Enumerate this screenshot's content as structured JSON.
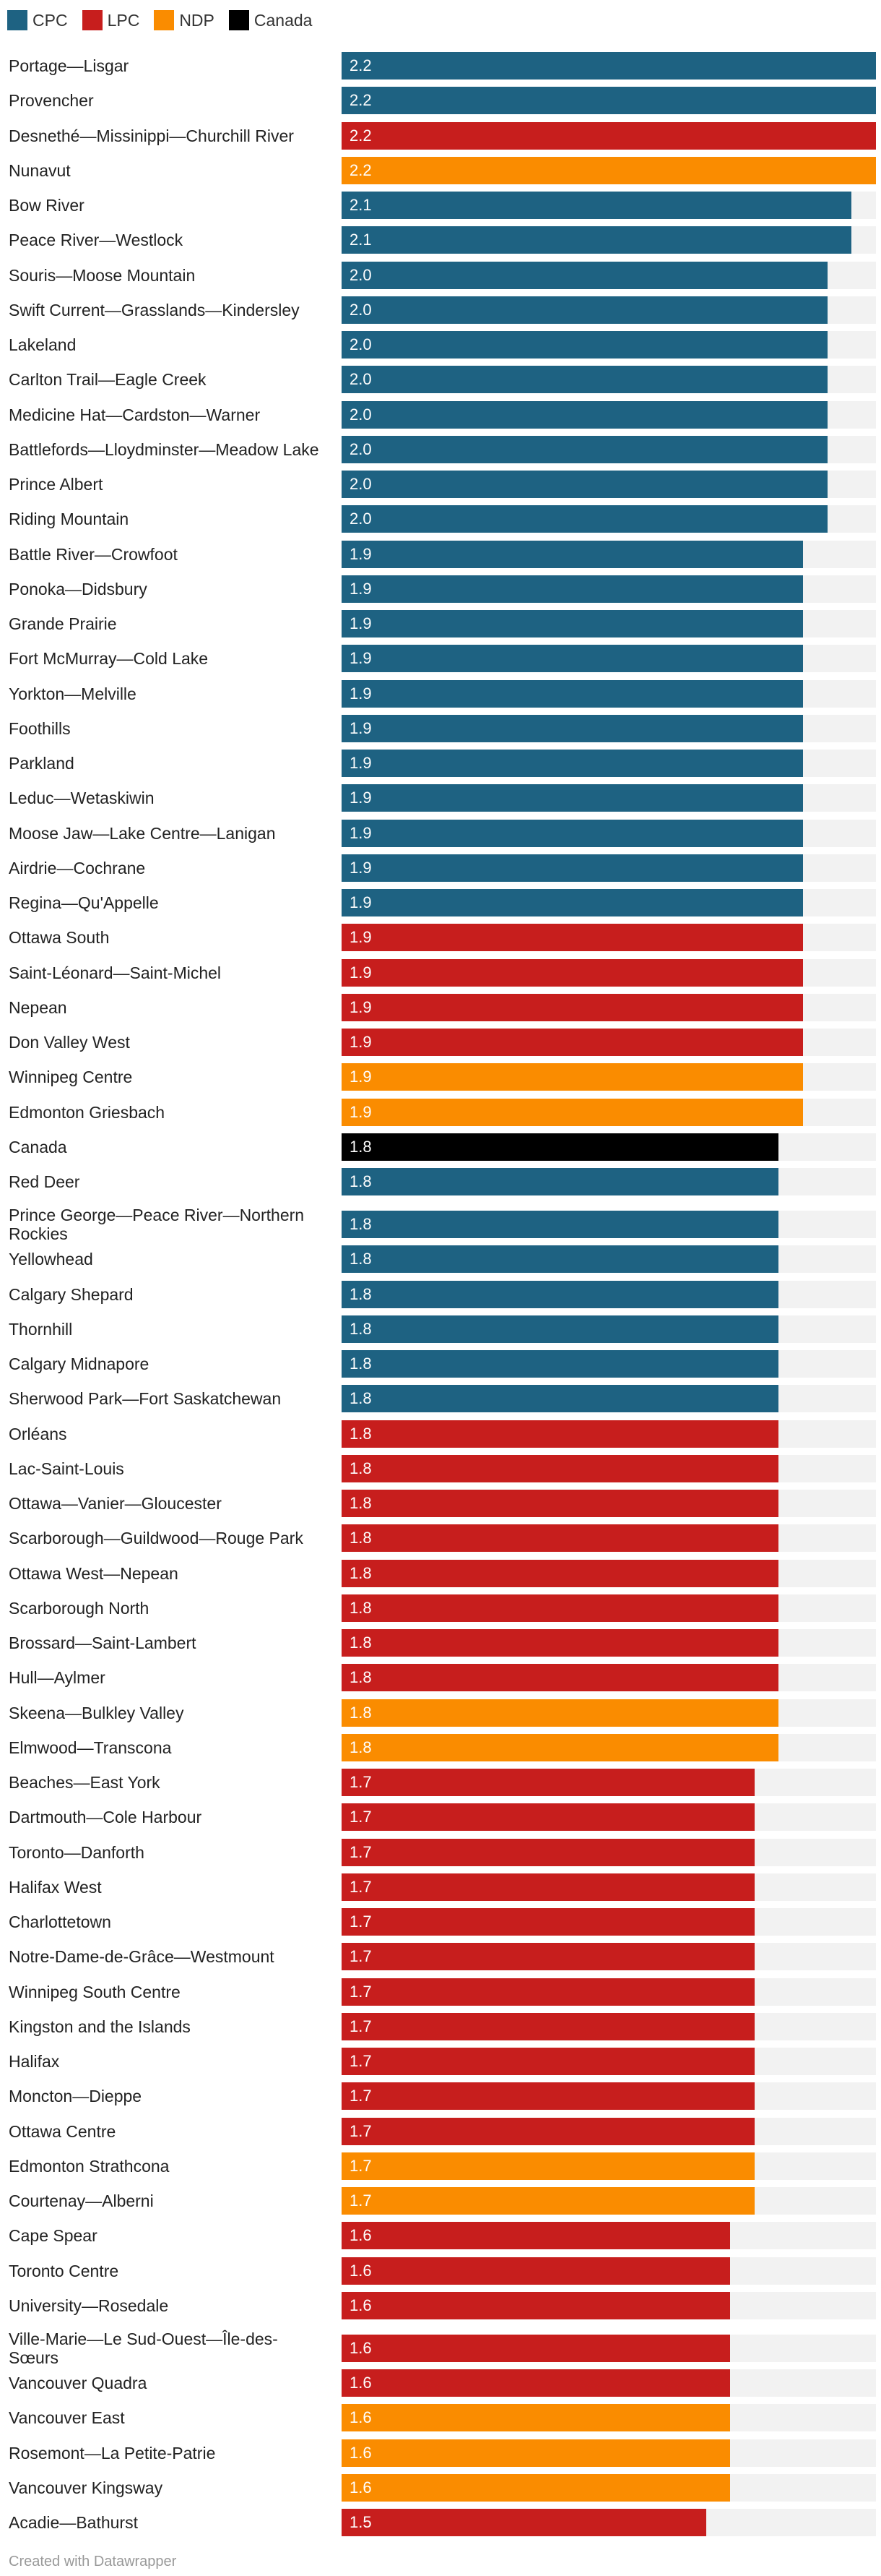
{
  "legend": [
    {
      "label": "CPC",
      "color": "#1e6282"
    },
    {
      "label": "LPC",
      "color": "#c71e1d"
    },
    {
      "label": "NDP",
      "color": "#fa8c00"
    },
    {
      "label": "Canada",
      "color": "#000000"
    }
  ],
  "footer": "Created with Datawrapper",
  "chart_data": {
    "type": "bar",
    "orientation": "horizontal",
    "xlim": [
      0,
      2.2
    ],
    "series_colors": {
      "CPC": "#1e6282",
      "LPC": "#c71e1d",
      "NDP": "#fa8c00",
      "Canada": "#000000"
    },
    "rows": [
      {
        "label": "Portage—Lisgar",
        "value": 2.2,
        "party": "CPC"
      },
      {
        "label": "Provencher",
        "value": 2.2,
        "party": "CPC"
      },
      {
        "label": "Desnethé—Missinippi—Churchill River",
        "value": 2.2,
        "party": "LPC"
      },
      {
        "label": "Nunavut",
        "value": 2.2,
        "party": "NDP"
      },
      {
        "label": "Bow River",
        "value": 2.1,
        "party": "CPC"
      },
      {
        "label": "Peace River—Westlock",
        "value": 2.1,
        "party": "CPC"
      },
      {
        "label": "Souris—Moose Mountain",
        "value": 2.0,
        "party": "CPC"
      },
      {
        "label": "Swift Current—Grasslands—Kindersley",
        "value": 2.0,
        "party": "CPC"
      },
      {
        "label": "Lakeland",
        "value": 2.0,
        "party": "CPC"
      },
      {
        "label": "Carlton Trail—Eagle Creek",
        "value": 2.0,
        "party": "CPC"
      },
      {
        "label": "Medicine Hat—Cardston—Warner",
        "value": 2.0,
        "party": "CPC"
      },
      {
        "label": "Battlefords—Lloydminster—Meadow Lake",
        "value": 2.0,
        "party": "CPC"
      },
      {
        "label": "Prince Albert",
        "value": 2.0,
        "party": "CPC"
      },
      {
        "label": "Riding Mountain",
        "value": 2.0,
        "party": "CPC"
      },
      {
        "label": "Battle River—Crowfoot",
        "value": 1.9,
        "party": "CPC"
      },
      {
        "label": "Ponoka—Didsbury",
        "value": 1.9,
        "party": "CPC"
      },
      {
        "label": "Grande Prairie",
        "value": 1.9,
        "party": "CPC"
      },
      {
        "label": "Fort McMurray—Cold Lake",
        "value": 1.9,
        "party": "CPC"
      },
      {
        "label": "Yorkton—Melville",
        "value": 1.9,
        "party": "CPC"
      },
      {
        "label": "Foothills",
        "value": 1.9,
        "party": "CPC"
      },
      {
        "label": "Parkland",
        "value": 1.9,
        "party": "CPC"
      },
      {
        "label": "Leduc—Wetaskiwin",
        "value": 1.9,
        "party": "CPC"
      },
      {
        "label": "Moose Jaw—Lake Centre—Lanigan",
        "value": 1.9,
        "party": "CPC"
      },
      {
        "label": "Airdrie—Cochrane",
        "value": 1.9,
        "party": "CPC"
      },
      {
        "label": "Regina—Qu'Appelle",
        "value": 1.9,
        "party": "CPC"
      },
      {
        "label": "Ottawa South",
        "value": 1.9,
        "party": "LPC"
      },
      {
        "label": "Saint-Léonard—Saint-Michel",
        "value": 1.9,
        "party": "LPC"
      },
      {
        "label": "Nepean",
        "value": 1.9,
        "party": "LPC"
      },
      {
        "label": "Don Valley West",
        "value": 1.9,
        "party": "LPC"
      },
      {
        "label": "Winnipeg Centre",
        "value": 1.9,
        "party": "NDP"
      },
      {
        "label": "Edmonton Griesbach",
        "value": 1.9,
        "party": "NDP"
      },
      {
        "label": "Canada",
        "value": 1.8,
        "party": "Canada"
      },
      {
        "label": "Red Deer",
        "value": 1.8,
        "party": "CPC"
      },
      {
        "label": "Prince George—Peace River—Northern Rockies",
        "value": 1.8,
        "party": "CPC"
      },
      {
        "label": "Yellowhead",
        "value": 1.8,
        "party": "CPC"
      },
      {
        "label": "Calgary Shepard",
        "value": 1.8,
        "party": "CPC"
      },
      {
        "label": "Thornhill",
        "value": 1.8,
        "party": "CPC"
      },
      {
        "label": "Calgary Midnapore",
        "value": 1.8,
        "party": "CPC"
      },
      {
        "label": "Sherwood Park—Fort Saskatchewan",
        "value": 1.8,
        "party": "CPC"
      },
      {
        "label": "Orléans",
        "value": 1.8,
        "party": "LPC"
      },
      {
        "label": "Lac-Saint-Louis",
        "value": 1.8,
        "party": "LPC"
      },
      {
        "label": "Ottawa—Vanier—Gloucester",
        "value": 1.8,
        "party": "LPC"
      },
      {
        "label": "Scarborough—Guildwood—Rouge Park",
        "value": 1.8,
        "party": "LPC"
      },
      {
        "label": "Ottawa West—Nepean",
        "value": 1.8,
        "party": "LPC"
      },
      {
        "label": "Scarborough North",
        "value": 1.8,
        "party": "LPC"
      },
      {
        "label": "Brossard—Saint-Lambert",
        "value": 1.8,
        "party": "LPC"
      },
      {
        "label": "Hull—Aylmer",
        "value": 1.8,
        "party": "LPC"
      },
      {
        "label": "Skeena—Bulkley Valley",
        "value": 1.8,
        "party": "NDP"
      },
      {
        "label": "Elmwood—Transcona",
        "value": 1.8,
        "party": "NDP"
      },
      {
        "label": "Beaches—East York",
        "value": 1.7,
        "party": "LPC"
      },
      {
        "label": "Dartmouth—Cole Harbour",
        "value": 1.7,
        "party": "LPC"
      },
      {
        "label": "Toronto—Danforth",
        "value": 1.7,
        "party": "LPC"
      },
      {
        "label": "Halifax West",
        "value": 1.7,
        "party": "LPC"
      },
      {
        "label": "Charlottetown",
        "value": 1.7,
        "party": "LPC"
      },
      {
        "label": "Notre-Dame-de-Grâce—Westmount",
        "value": 1.7,
        "party": "LPC"
      },
      {
        "label": "Winnipeg South Centre",
        "value": 1.7,
        "party": "LPC"
      },
      {
        "label": "Kingston and the Islands",
        "value": 1.7,
        "party": "LPC"
      },
      {
        "label": "Halifax",
        "value": 1.7,
        "party": "LPC"
      },
      {
        "label": "Moncton—Dieppe",
        "value": 1.7,
        "party": "LPC"
      },
      {
        "label": "Ottawa Centre",
        "value": 1.7,
        "party": "LPC"
      },
      {
        "label": "Edmonton Strathcona",
        "value": 1.7,
        "party": "NDP"
      },
      {
        "label": "Courtenay—Alberni",
        "value": 1.7,
        "party": "NDP"
      },
      {
        "label": "Cape Spear",
        "value": 1.6,
        "party": "LPC"
      },
      {
        "label": "Toronto Centre",
        "value": 1.6,
        "party": "LPC"
      },
      {
        "label": "University—Rosedale",
        "value": 1.6,
        "party": "LPC"
      },
      {
        "label": "Ville-Marie—Le Sud-Ouest—Île-des-Sœurs",
        "value": 1.6,
        "party": "LPC"
      },
      {
        "label": "Vancouver Quadra",
        "value": 1.6,
        "party": "LPC"
      },
      {
        "label": "Vancouver East",
        "value": 1.6,
        "party": "NDP"
      },
      {
        "label": "Rosemont—La Petite-Patrie",
        "value": 1.6,
        "party": "NDP"
      },
      {
        "label": "Vancouver Kingsway",
        "value": 1.6,
        "party": "NDP"
      },
      {
        "label": "Acadie—Bathurst",
        "value": 1.5,
        "party": "LPC"
      }
    ]
  }
}
